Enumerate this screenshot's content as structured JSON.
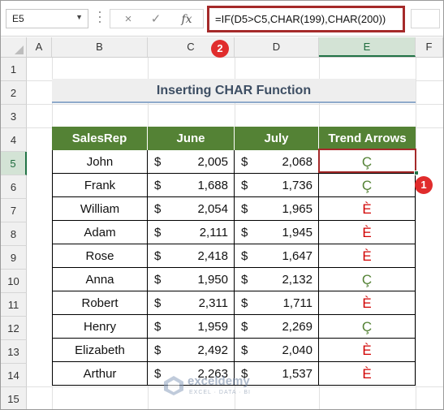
{
  "formula_bar": {
    "name_box": "E5",
    "cancel_icon": "×",
    "enter_icon": "✓",
    "fx_label": "fx",
    "formula": "=IF(D5>C5,CHAR(199),CHAR(200))"
  },
  "columns": [
    "A",
    "B",
    "C",
    "D",
    "E",
    "F"
  ],
  "rows": [
    "1",
    "2",
    "3",
    "4",
    "5",
    "6",
    "7",
    "8",
    "9",
    "10",
    "11",
    "12",
    "13",
    "14",
    "15"
  ],
  "selected_cell": "E5",
  "title": "Inserting CHAR Function",
  "table": {
    "headers": [
      "SalesRep",
      "June",
      "July",
      "Trend Arrows"
    ],
    "currency": "$",
    "rows": [
      {
        "name": "John",
        "june": "2,005",
        "july": "2,068",
        "trend": "Ç",
        "trend_dir": "up"
      },
      {
        "name": "Frank",
        "june": "1,688",
        "july": "1,736",
        "trend": "Ç",
        "trend_dir": "up"
      },
      {
        "name": "William",
        "june": "2,054",
        "july": "1,965",
        "trend": "È",
        "trend_dir": "down"
      },
      {
        "name": "Adam",
        "june": "2,111",
        "july": "1,945",
        "trend": "È",
        "trend_dir": "down"
      },
      {
        "name": "Rose",
        "june": "2,418",
        "july": "1,647",
        "trend": "È",
        "trend_dir": "down"
      },
      {
        "name": "Anna",
        "june": "1,950",
        "july": "2,132",
        "trend": "Ç",
        "trend_dir": "up"
      },
      {
        "name": "Robert",
        "june": "2,311",
        "july": "1,711",
        "trend": "È",
        "trend_dir": "down"
      },
      {
        "name": "Henry",
        "june": "1,959",
        "july": "2,269",
        "trend": "Ç",
        "trend_dir": "up"
      },
      {
        "name": "Elizabeth",
        "june": "2,492",
        "july": "2,040",
        "trend": "È",
        "trend_dir": "down"
      },
      {
        "name": "Arthur",
        "june": "2,263",
        "july": "1,537",
        "trend": "È",
        "trend_dir": "down"
      }
    ]
  },
  "callouts": [
    "1",
    "2"
  ],
  "watermark": {
    "brand": "exceldemy",
    "tagline": "EXCEL · DATA · BI"
  },
  "colors": {
    "header_green": "#548235",
    "up_green": "#548235",
    "down_red": "#d10000",
    "highlight_red": "#a52a2a",
    "badge_red": "#e02c2c"
  }
}
